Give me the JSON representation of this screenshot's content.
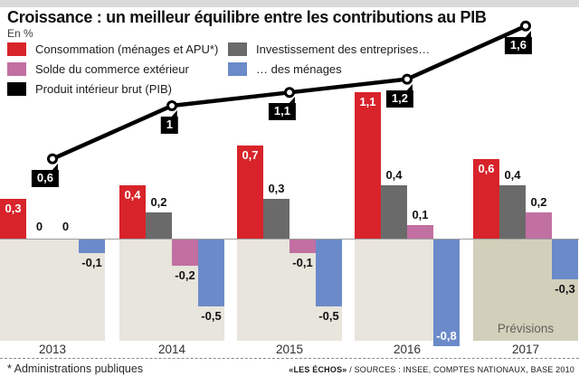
{
  "title": "Croissance : un meilleur équilibre entre les contributions au PIB",
  "subtitle": "En %",
  "legend": {
    "items": [
      {
        "label": "Consommation (ménages et APU*)",
        "color": "#d8232a"
      },
      {
        "label": "Investissement des entreprises…",
        "color": "#6a6a6a"
      },
      {
        "label": "Solde du commerce extérieur",
        "color": "#c26fa2"
      },
      {
        "label": "… des ménages",
        "color": "#6b8ac9"
      },
      {
        "label": "Produit intérieur brut (PIB)",
        "color": "#000000"
      }
    ]
  },
  "chart_data": {
    "type": "bar+line",
    "unit": "%",
    "title": "Croissance : un meilleur équilibre entre les contributions au PIB",
    "categories": [
      "2013",
      "2014",
      "2015",
      "2016",
      "2017"
    ],
    "series": [
      {
        "name": "Consommation (ménages et APU*)",
        "color": "#d8232a",
        "values": [
          0.3,
          0.4,
          0.7,
          1.1,
          0.6
        ]
      },
      {
        "name": "Investissement des entreprises…",
        "color": "#6a6a6a",
        "values": [
          0,
          0.2,
          0.3,
          0.4,
          0.4
        ]
      },
      {
        "name": "Solde du commerce extérieur",
        "color": "#c26fa2",
        "values": [
          0,
          -0.2,
          -0.1,
          0.1,
          0.2
        ]
      },
      {
        "name": "… des ménages",
        "color": "#6b8ac9",
        "values": [
          -0.1,
          -0.5,
          -0.5,
          -0.8,
          -0.3
        ]
      }
    ],
    "line_series": {
      "name": "Produit intérieur brut (PIB)",
      "color": "#000000",
      "values": [
        0.6,
        1,
        1.1,
        1.2,
        1.6
      ]
    },
    "forecast": {
      "category": "2017",
      "label": "Prévisions"
    },
    "ylim": [
      -0.9,
      1.7
    ],
    "grid": false,
    "legend_position": "top-left",
    "value_format": "comma-decimal"
  },
  "colors": {
    "beige": "#e7e5dc",
    "beige_forecast": "#d2d0bb",
    "zero_line": "#9f9f9f",
    "top_strip": "#d9d9d9"
  },
  "footer": {
    "note": "* Administrations publiques",
    "credit_brand": "«LES ÉCHOS»",
    "credit_sources": " / SOURCES : INSEE, COMPTES NATIONAUX, BASE 2010"
  }
}
